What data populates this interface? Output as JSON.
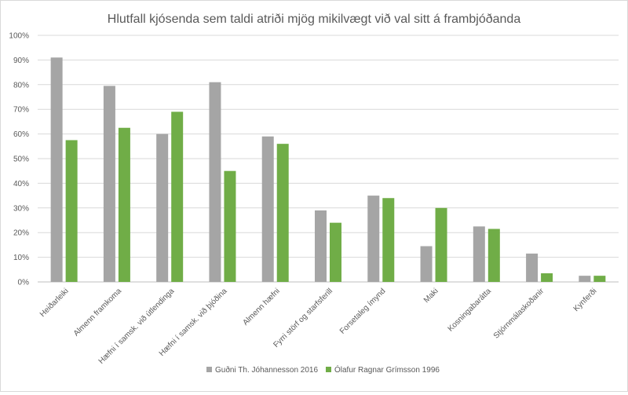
{
  "chart_data": {
    "type": "bar",
    "title": "Hlutfall kjósenda sem taldi atriði mjög mikilvægt við val sitt á frambjóðanda",
    "xlabel": "",
    "ylabel": "",
    "ylim": [
      0,
      100
    ],
    "y_ticks": [
      "0%",
      "10%",
      "20%",
      "30%",
      "40%",
      "50%",
      "60%",
      "70%",
      "80%",
      "90%",
      "100%"
    ],
    "grid": true,
    "legend_position": "bottom",
    "categories": [
      "Heiðarleiki",
      "Almenn framkoma",
      "Hæfni í samsk. við útlendinga",
      "Hæfni í samsk. við þjóðina",
      "Almenn hæfni",
      "Fyrri störf og starfsferill",
      "Forsetaleg ímynd",
      "Maki",
      "Kosningabarátta",
      "Stjórnmálaskoðanir",
      "Kynferði"
    ],
    "series": [
      {
        "name": "Guðni Th. Jóhannesson 2016",
        "color": "#a5a5a5",
        "values": [
          91,
          79.5,
          60,
          81,
          59,
          29,
          35,
          14.5,
          22.5,
          11.5,
          2.5
        ]
      },
      {
        "name": "Ólafur Ragnar Grímsson 1996",
        "color": "#70ad47",
        "values": [
          57.5,
          62.5,
          69,
          45,
          56,
          24,
          34,
          30,
          21.5,
          3.5,
          2.5
        ]
      }
    ]
  }
}
